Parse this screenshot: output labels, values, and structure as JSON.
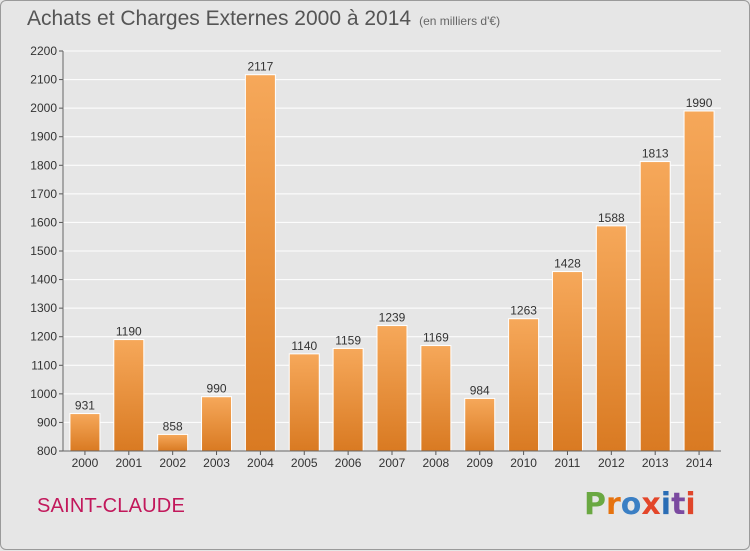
{
  "title": "Achats et Charges Externes 2000 à 2014",
  "subtitle": "(en milliers d'€)",
  "location": "SAINT-CLAUDE",
  "logo": {
    "text": "Proxiti",
    "colors": [
      "#6aa842",
      "#e6730f",
      "#3b7fc4",
      "#e3462a",
      "#2a6db5",
      "#7b4aa0",
      "#e0462a"
    ]
  },
  "colors": {
    "bar_top": "#f6a85a",
    "bar_bottom": "#d97a22",
    "grid": "#ffffff",
    "plot_bg": "#e6e6e6",
    "text": "#333333",
    "location": "#c2185b"
  },
  "chart_data": {
    "type": "bar",
    "categories": [
      "2000",
      "2001",
      "2002",
      "2003",
      "2004",
      "2005",
      "2006",
      "2007",
      "2008",
      "2009",
      "2010",
      "2011",
      "2012",
      "2013",
      "2014"
    ],
    "values": [
      931,
      1190,
      858,
      990,
      2117,
      1140,
      1159,
      1239,
      1169,
      984,
      1263,
      1428,
      1588,
      1813,
      1990
    ],
    "ylim": [
      800,
      2200
    ],
    "yticks": [
      800,
      900,
      1000,
      1100,
      1200,
      1300,
      1400,
      1500,
      1600,
      1700,
      1800,
      1900,
      2000,
      2100,
      2200
    ],
    "grid": true,
    "data_labels": true
  }
}
